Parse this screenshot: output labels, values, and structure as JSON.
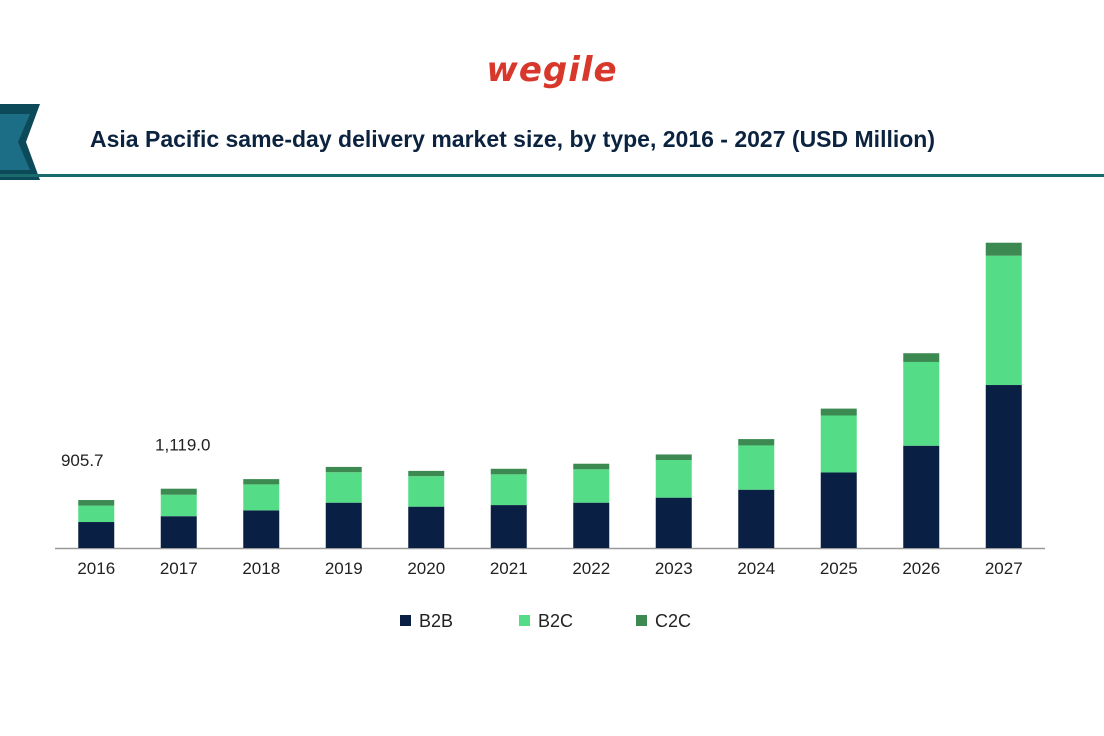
{
  "logo": {
    "text": "wegile"
  },
  "colors": {
    "b2b": "#0a1f44",
    "b2c": "#54dd86",
    "c2c": "#3c8a52",
    "logo": "#d8372b",
    "title": "#0c2340",
    "band_dark": "#0c4a5a",
    "band_line": "#1a6b6b"
  },
  "chart_data": {
    "type": "bar",
    "stacked": true,
    "title": "Asia Pacific same-day delivery market size, by type, 2016 - 2027 (USD Million)",
    "xlabel": "",
    "ylabel": "",
    "categories": [
      "2016",
      "2017",
      "2018",
      "2019",
      "2020",
      "2021",
      "2022",
      "2023",
      "2024",
      "2025",
      "2026",
      "2027"
    ],
    "series": [
      {
        "name": "B2B",
        "color": "#0a1f44",
        "values": [
          490,
          600,
          710,
          855,
          780,
          810,
          855,
          950,
          1100,
          1425,
          1930,
          3075
        ]
      },
      {
        "name": "B2C",
        "color": "#54dd86",
        "values": [
          310,
          405,
          490,
          575,
          575,
          580,
          630,
          710,
          835,
          1075,
          1580,
          2440
        ]
      },
      {
        "name": "C2C",
        "color": "#3c8a52",
        "values": [
          105,
          114,
          100,
          100,
          100,
          105,
          105,
          105,
          120,
          130,
          165,
          245
        ]
      }
    ],
    "data_labels": [
      {
        "category": "2016",
        "text": "905.7"
      },
      {
        "category": "2017",
        "text": "1,119.0"
      }
    ],
    "legend": [
      "B2B",
      "B2C",
      "C2C"
    ],
    "legend_position": "bottom-center",
    "ylim": [
      0,
      6000
    ],
    "grid": false
  }
}
